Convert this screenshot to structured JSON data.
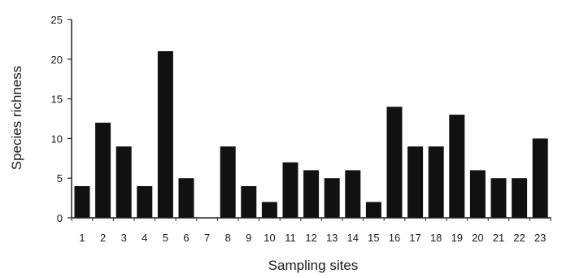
{
  "chart_data": {
    "type": "bar",
    "title": "",
    "xlabel": "Sampling sites",
    "ylabel": "Species richness",
    "categories": [
      "1",
      "2",
      "3",
      "4",
      "5",
      "6",
      "7",
      "8",
      "9",
      "10",
      "11",
      "12",
      "13",
      "14",
      "15",
      "16",
      "17",
      "18",
      "19",
      "20",
      "21",
      "22",
      "23"
    ],
    "values": [
      4,
      12,
      9,
      4,
      21,
      5,
      0,
      9,
      4,
      2,
      7,
      6,
      5,
      6,
      2,
      14,
      9,
      9,
      13,
      6,
      5,
      5,
      10
    ],
    "ylim": [
      0,
      25
    ],
    "yticks": [
      0,
      5,
      10,
      15,
      20,
      25
    ],
    "grid": false,
    "legend": "none",
    "bar_color": "#111111",
    "axis_color": "#222222"
  }
}
